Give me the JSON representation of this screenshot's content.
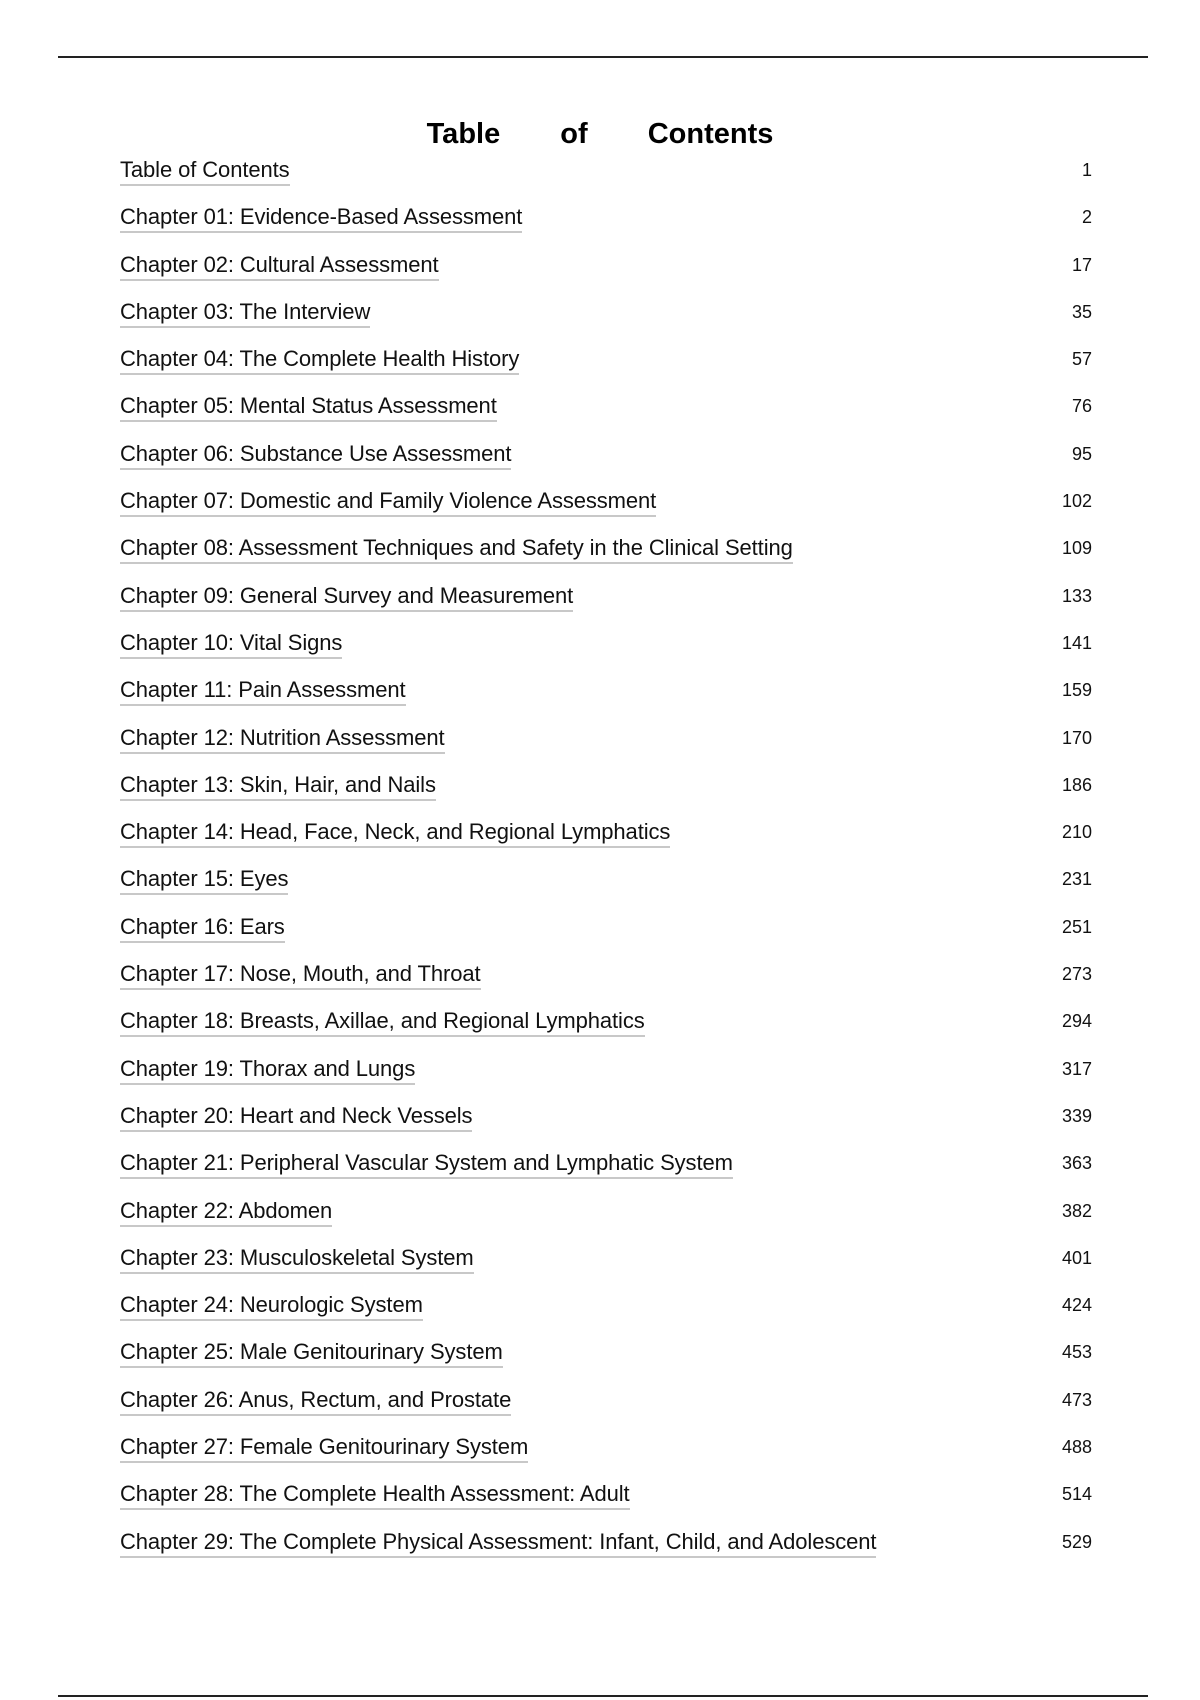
{
  "title": "Table of Contents",
  "entries": [
    {
      "label": "Table of Contents",
      "page": "1"
    },
    {
      "label": "Chapter 01: Evidence-Based Assessment",
      "page": "2"
    },
    {
      "label": "Chapter 02: Cultural Assessment",
      "page": "17"
    },
    {
      "label": "Chapter 03: The Interview",
      "page": "35"
    },
    {
      "label": "Chapter 04: The Complete Health History",
      "page": "57"
    },
    {
      "label": "Chapter 05: Mental Status Assessment",
      "page": "76"
    },
    {
      "label": "Chapter 06: Substance Use Assessment",
      "page": "95"
    },
    {
      "label": "Chapter 07: Domestic and Family Violence Assessment",
      "page": "102"
    },
    {
      "label": "Chapter 08: Assessment Techniques and Safety in the Clinical Setting",
      "page": "109"
    },
    {
      "label": "Chapter 09: General Survey and Measurement",
      "page": "133"
    },
    {
      "label": "Chapter 10: Vital Signs",
      "page": "141"
    },
    {
      "label": "Chapter 11: Pain Assessment",
      "page": "159"
    },
    {
      "label": "Chapter 12: Nutrition Assessment",
      "page": "170"
    },
    {
      "label": "Chapter 13: Skin, Hair, and Nails",
      "page": "186"
    },
    {
      "label": "Chapter 14: Head, Face, Neck, and Regional Lymphatics",
      "page": "210"
    },
    {
      "label": "Chapter 15: Eyes",
      "page": "231"
    },
    {
      "label": "Chapter 16: Ears",
      "page": "251"
    },
    {
      "label": "Chapter 17: Nose, Mouth, and Throat",
      "page": "273"
    },
    {
      "label": "Chapter 18: Breasts, Axillae, and Regional Lymphatics",
      "page": "294"
    },
    {
      "label": "Chapter 19: Thorax and Lungs",
      "page": "317"
    },
    {
      "label": "Chapter 20: Heart and Neck Vessels",
      "page": "339"
    },
    {
      "label": "Chapter 21: Peripheral Vascular System and Lymphatic System",
      "page": "363"
    },
    {
      "label": "Chapter 22: Abdomen",
      "page": "382"
    },
    {
      "label": "Chapter 23: Musculoskeletal System",
      "page": "401"
    },
    {
      "label": "Chapter 24: Neurologic System",
      "page": "424"
    },
    {
      "label": "Chapter 25: Male Genitourinary System",
      "page": "453"
    },
    {
      "label": "Chapter 26: Anus, Rectum, and Prostate",
      "page": "473"
    },
    {
      "label": "Chapter 27: Female Genitourinary System",
      "page": "488"
    },
    {
      "label": "Chapter 28: The Complete Health Assessment: Adult",
      "page": "514"
    },
    {
      "label": "Chapter 29: The Complete Physical Assessment: Infant, Child, and Adolescent",
      "page": "529"
    }
  ]
}
